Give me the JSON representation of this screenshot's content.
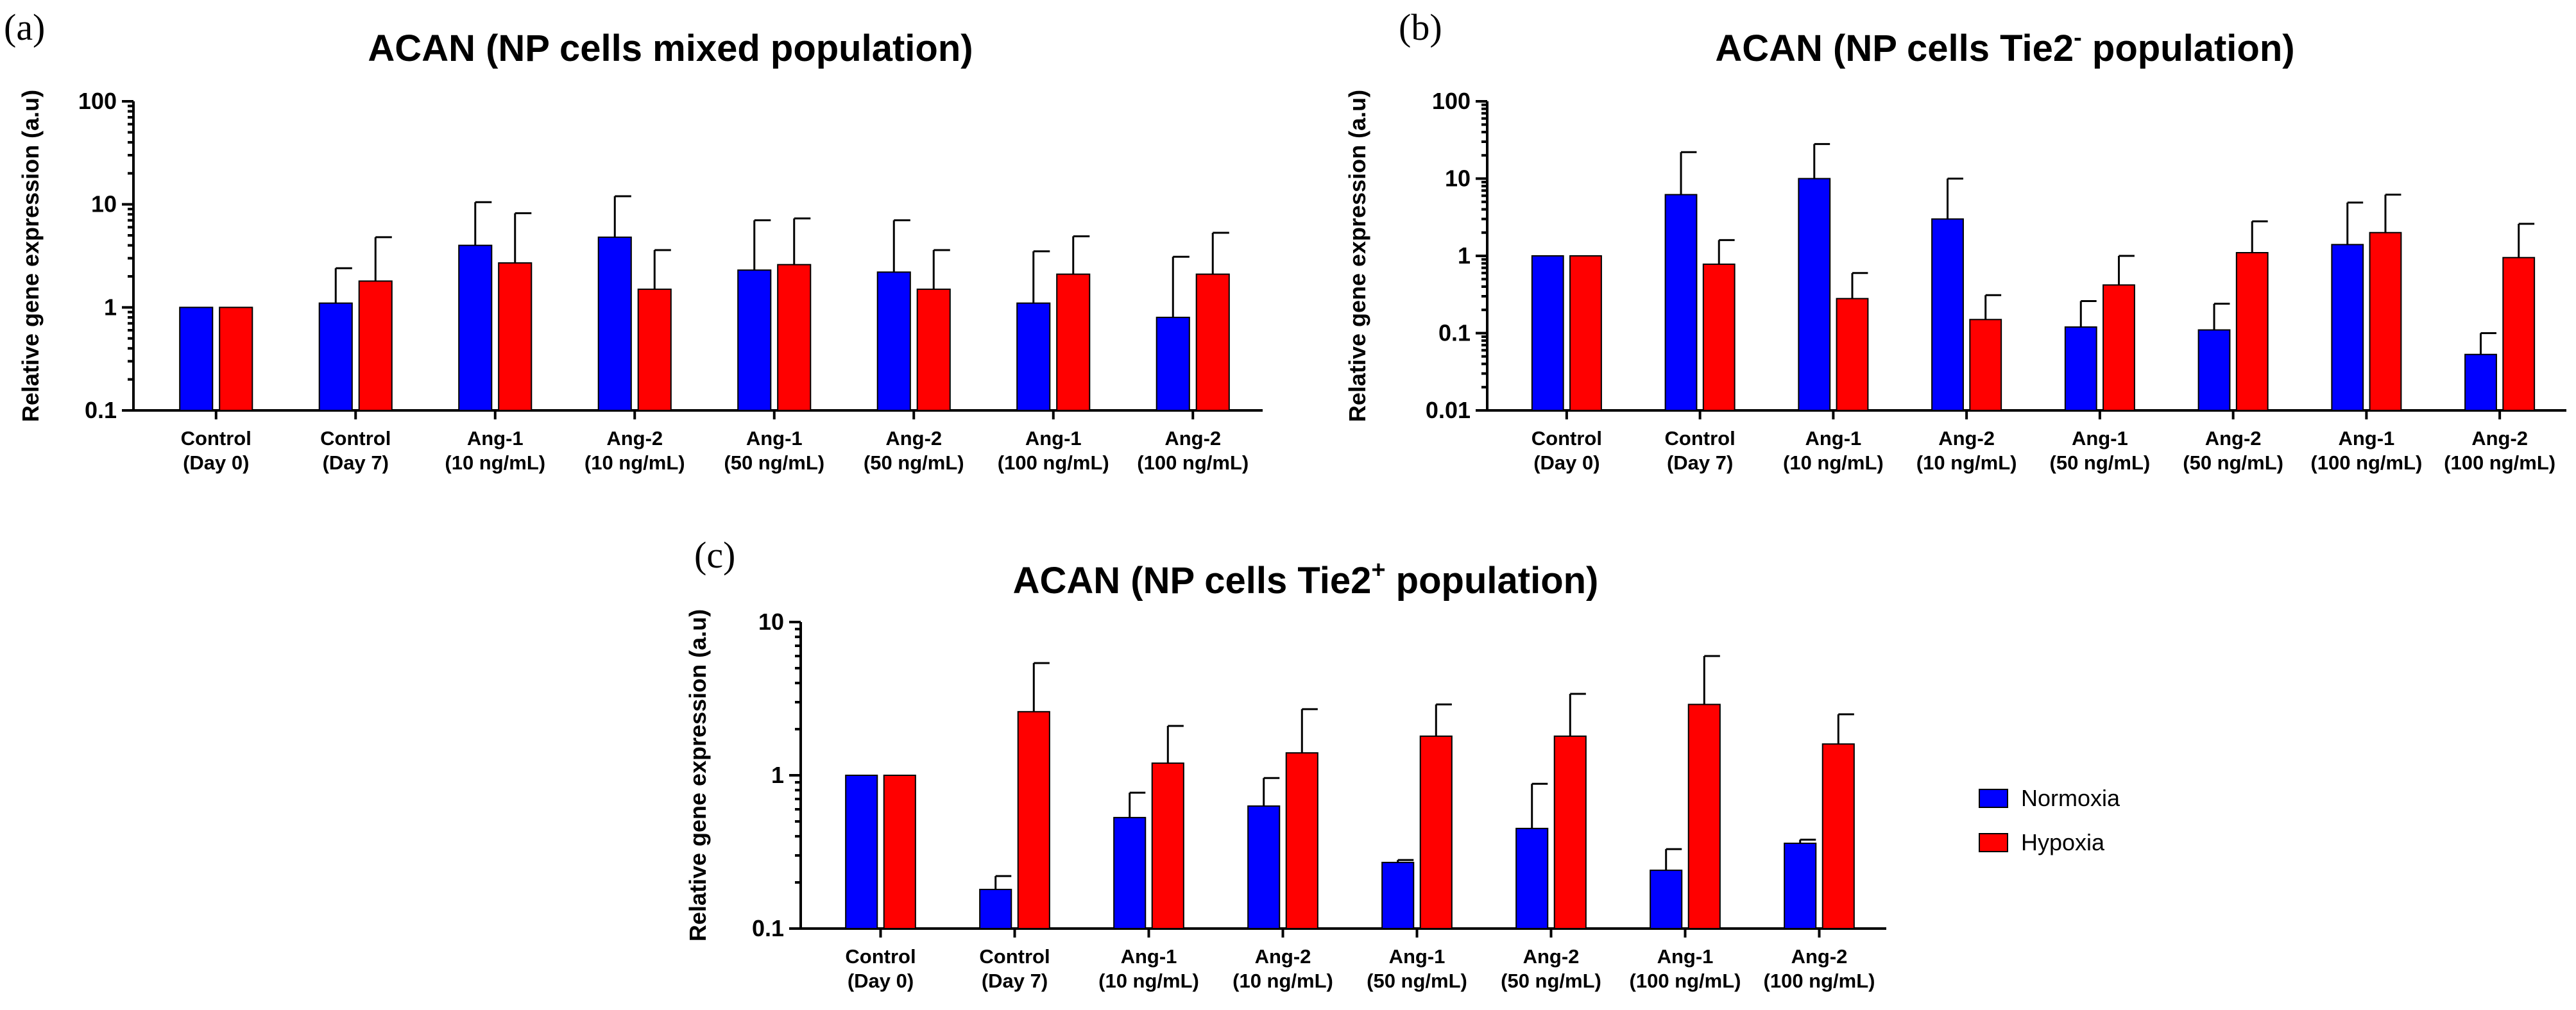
{
  "colors": {
    "normoxia": "#0000ff",
    "hypoxia": "#ff0000"
  },
  "legend": [
    {
      "name": "Normoxia",
      "color": "#0000ff"
    },
    {
      "name": "Hypoxia",
      "color": "#ff0000"
    }
  ],
  "chart_data": [
    {
      "id": "a",
      "panel_label": "(a)",
      "type": "bar",
      "scale": "log",
      "title": "ACAN (NP cells mixed population)",
      "title_sup": "",
      "title_suffix": "",
      "ylabel": "Relative gene expression (a.u)",
      "ylim": [
        0.1,
        100
      ],
      "yticks": [
        {
          "value": 0.1,
          "label": "0.1"
        },
        {
          "value": 1,
          "label": "1"
        },
        {
          "value": 10,
          "label": "10"
        },
        {
          "value": 100,
          "label": "100"
        }
      ],
      "categories": [
        [
          "Control",
          "(Day 0)"
        ],
        [
          "Control",
          "(Day 7)"
        ],
        [
          "Ang-1",
          "(10 ng/mL)"
        ],
        [
          "Ang-2",
          "(10 ng/mL)"
        ],
        [
          "Ang-1",
          "(50 ng/mL)"
        ],
        [
          "Ang-2",
          "(50 ng/mL)"
        ],
        [
          "Ang-1",
          "(100 ng/mL)"
        ],
        [
          "Ang-2",
          "(100 ng/mL)"
        ]
      ],
      "series": [
        {
          "name": "Normoxia",
          "values": [
            1.0,
            1.1,
            4.0,
            4.8,
            2.3,
            2.2,
            1.1,
            0.8
          ],
          "errors": [
            null,
            2.4,
            10.5,
            12.0,
            7.0,
            7.0,
            3.5,
            3.1
          ]
        },
        {
          "name": "Hypoxia",
          "values": [
            1.0,
            1.8,
            2.7,
            1.5,
            2.6,
            1.5,
            2.1,
            2.1
          ],
          "errors": [
            null,
            4.8,
            8.2,
            3.6,
            7.3,
            3.6,
            4.9,
            5.3
          ]
        }
      ]
    },
    {
      "id": "b",
      "panel_label": "(b)",
      "type": "bar",
      "scale": "log",
      "title": "ACAN (NP cells Tie2",
      "title_sup": "-",
      "title_suffix": " population)",
      "ylabel": "Relative gene expression (a.u)",
      "ylim": [
        0.01,
        100
      ],
      "yticks": [
        {
          "value": 0.01,
          "label": "0.01"
        },
        {
          "value": 0.1,
          "label": "0.1"
        },
        {
          "value": 1,
          "label": "1"
        },
        {
          "value": 10,
          "label": "10"
        },
        {
          "value": 100,
          "label": "100"
        }
      ],
      "categories": [
        [
          "Control",
          "(Day 0)"
        ],
        [
          "Control",
          "(Day 7)"
        ],
        [
          "Ang-1",
          "(10 ng/mL)"
        ],
        [
          "Ang-2",
          "(10 ng/mL)"
        ],
        [
          "Ang-1",
          "(50 ng/mL)"
        ],
        [
          "Ang-2",
          "(50 ng/mL)"
        ],
        [
          "Ang-1",
          "(100 ng/mL)"
        ],
        [
          "Ang-2",
          "(100 ng/mL)"
        ]
      ],
      "series": [
        {
          "name": "Normoxia",
          "values": [
            1.0,
            6.2,
            10.0,
            3.0,
            0.12,
            0.11,
            1.4,
            0.053
          ],
          "errors": [
            null,
            22.0,
            28.0,
            10.0,
            0.26,
            0.24,
            4.9,
            0.1
          ]
        },
        {
          "name": "Hypoxia",
          "values": [
            1.0,
            0.78,
            0.28,
            0.15,
            0.42,
            1.1,
            2.0,
            0.95
          ],
          "errors": [
            null,
            1.6,
            0.6,
            0.31,
            1.0,
            2.8,
            6.2,
            2.6
          ]
        }
      ]
    },
    {
      "id": "c",
      "panel_label": "(c)",
      "type": "bar",
      "scale": "log",
      "title": "ACAN (NP cells Tie2",
      "title_sup": "+",
      "title_suffix": " population)",
      "ylabel": "Relative gene expression (a.u)",
      "ylim": [
        0.1,
        10
      ],
      "yticks": [
        {
          "value": 0.1,
          "label": "0.1"
        },
        {
          "value": 1,
          "label": "1"
        },
        {
          "value": 10,
          "label": "10"
        }
      ],
      "categories": [
        [
          "Control",
          "(Day 0)"
        ],
        [
          "Control",
          "(Day 7)"
        ],
        [
          "Ang-1",
          "(10 ng/mL)"
        ],
        [
          "Ang-2",
          "(10 ng/mL)"
        ],
        [
          "Ang-1",
          "(50 ng/mL)"
        ],
        [
          "Ang-2",
          "(50 ng/mL)"
        ],
        [
          "Ang-1",
          "(100 ng/mL)"
        ],
        [
          "Ang-2",
          "(100 ng/mL)"
        ]
      ],
      "series": [
        {
          "name": "Normoxia",
          "values": [
            1.0,
            0.18,
            0.53,
            0.63,
            0.27,
            0.45,
            0.24,
            0.36
          ],
          "errors": [
            null,
            0.22,
            0.77,
            0.96,
            0.28,
            0.88,
            0.33,
            0.38
          ]
        },
        {
          "name": "Hypoxia",
          "values": [
            1.0,
            2.6,
            1.2,
            1.4,
            1.8,
            1.8,
            2.9,
            1.6
          ],
          "errors": [
            null,
            5.4,
            2.1,
            2.7,
            2.9,
            3.4,
            6.0,
            2.5
          ]
        }
      ]
    }
  ]
}
